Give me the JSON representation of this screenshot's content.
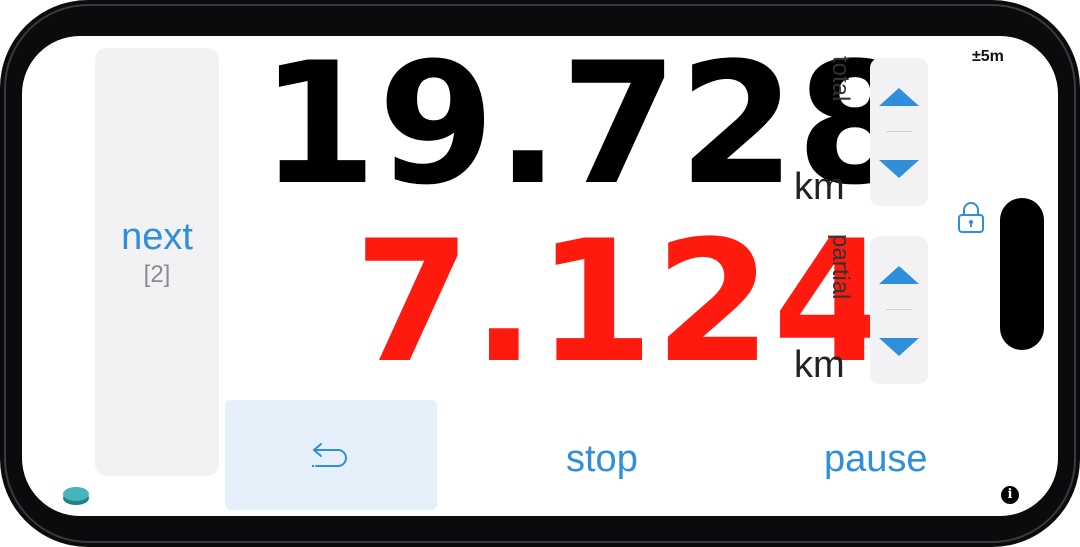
{
  "next": {
    "label": "next",
    "count": "[2]"
  },
  "total": {
    "label": "total",
    "value": "19.728",
    "unit": "km"
  },
  "partial": {
    "label": "partial",
    "value": "7.124",
    "unit": "km"
  },
  "gps_accuracy": "±5m",
  "actions": {
    "undo_icon": "undo-arrow-icon",
    "stop": "stop",
    "pause": "pause"
  },
  "info": "i",
  "colors": {
    "accent": "#2f8fdb",
    "partial_value": "#ff1a10",
    "total_value": "#000000",
    "panel": "#f2f2f5"
  }
}
